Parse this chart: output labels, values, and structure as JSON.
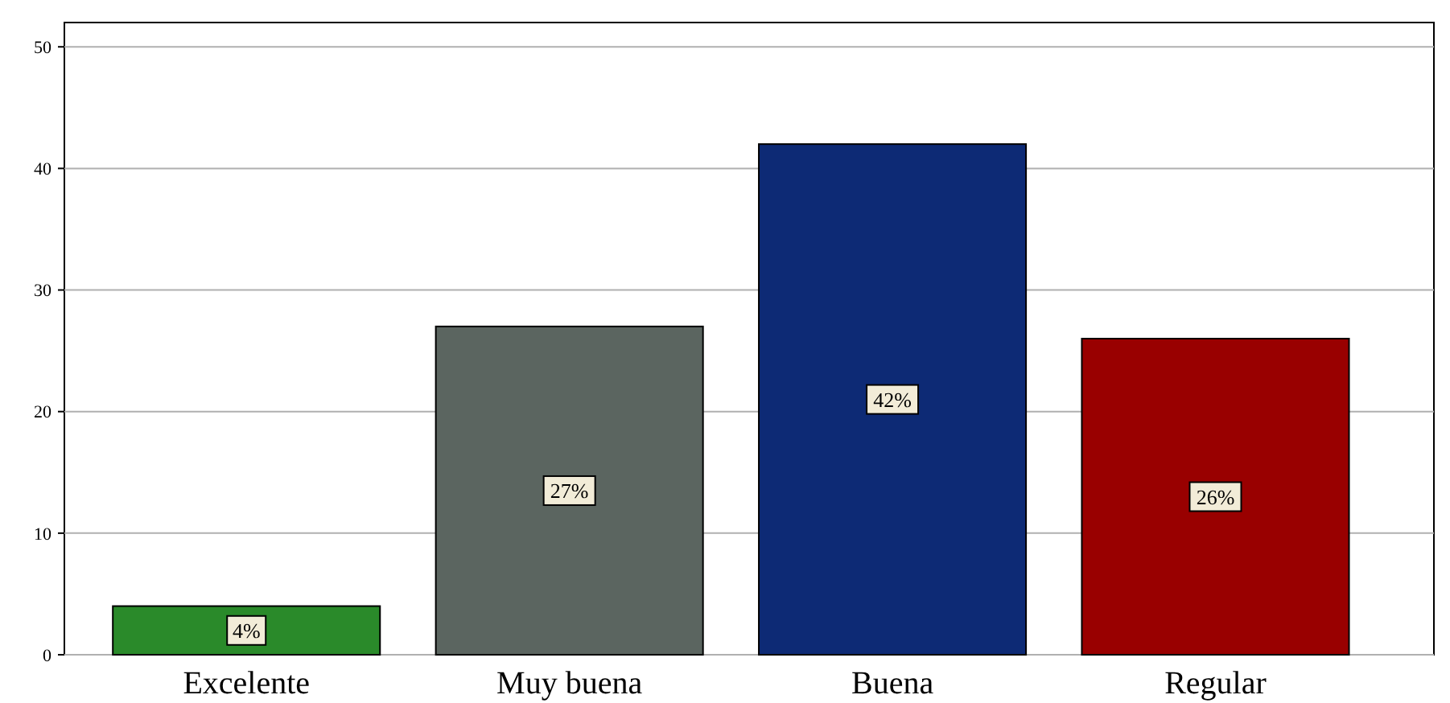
{
  "chart_data": {
    "type": "bar",
    "categories": [
      "Excelente",
      "Muy buena",
      "Buena",
      "Regular"
    ],
    "values": [
      4,
      27,
      42,
      26
    ],
    "colors": [
      "#2a8a2a",
      "#5b6560",
      "#0d2a75",
      "#990000"
    ],
    "value_labels": [
      "4%",
      "27%",
      "42%",
      "26%"
    ],
    "ylim": [
      0,
      52
    ],
    "yticks": [
      0,
      10,
      20,
      30,
      40,
      50
    ],
    "grid": "y"
  }
}
